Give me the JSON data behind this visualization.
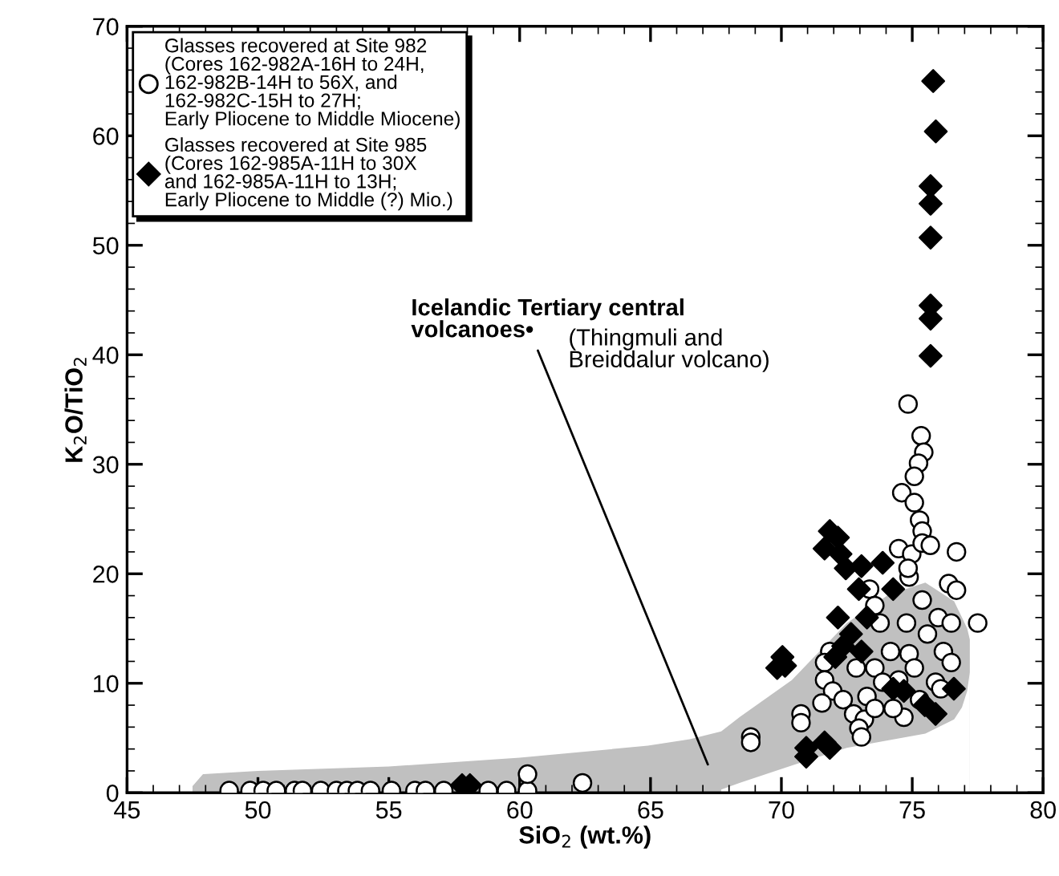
{
  "chart_data": {
    "type": "scatter",
    "xlabel": "SiO$_{2}$ (wt.%)",
    "ylabel": "K$_{2}$O/TiO$_{2}$",
    "xlim": [
      45,
      80
    ],
    "xticks": [
      45,
      50,
      55,
      60,
      65,
      70,
      75,
      80
    ],
    "ylim": [
      0,
      70
    ],
    "yticks": [
      0,
      10,
      20,
      30,
      40,
      50,
      60,
      70
    ],
    "grid": false,
    "legend": "top left",
    "series": [
      {
        "type": "area",
        "color": "#c0c0c0",
        "x": [
          47.5,
          47.9,
          50,
          55,
          60,
          64.9,
          66.5,
          67.7,
          68.4,
          70.4,
          72.5,
          74.1,
          75.5,
          76.6,
          76.9,
          77.1,
          77.2
        ],
        "values": [
          0.6,
          1.7,
          2.0,
          2.4,
          3.2,
          4.3,
          4.9,
          5.6,
          6.9,
          10.3,
          15.5,
          18.1,
          19.2,
          17.5,
          16.0,
          15.0,
          14.0
        ]
      },
      {
        "type": "area",
        "color": "#ffffff",
        "x": [
          67.7,
          68.4,
          70.4,
          72.5,
          74.1,
          75.5,
          76.6,
          76.9,
          77.1,
          77.2
        ],
        "values": [
          0.3,
          0.9,
          2.5,
          4.1,
          4.8,
          5.4,
          6.7,
          7.8,
          9.3,
          11.0
        ]
      },
      {
        "name": "Glasses recovered at Site 982\n(Cores 162-982A-16H to 24H,\n162-982B-14H to 56X, and\n162-982C-15H to 27H;\nEarly Pliocene to Middle Miocene)",
        "color": "#ffffff",
        "marker": "circle",
        "x": [
          48.9,
          49.7,
          50.2,
          50.7,
          51.4,
          51.7,
          52.4,
          53.0,
          53.4,
          53.8,
          54.3,
          55.1,
          56.0,
          56.4,
          57.1,
          58.8,
          59.5,
          60.3,
          60.3,
          62.4,
          74.84,
          75.34,
          75.44,
          75.24,
          75.08,
          74.6,
          75.08,
          75.28,
          75.38,
          74.48,
          74.98,
          76.69,
          75.38,
          75.69,
          74.88,
          76.39,
          76.69,
          73.37,
          73.57,
          75.38,
          74.78,
          75.99,
          76.49,
          77.5,
          75.58,
          73.77,
          71.85,
          71.65,
          74.17,
          74.88,
          76.19,
          76.49,
          72.86,
          73.57,
          74.48,
          75.08,
          75.89,
          71.65,
          71.96,
          72.36,
          73.27,
          71.55,
          72.76,
          73.17,
          70.75,
          70.75,
          72.96,
          73.06,
          74.68,
          74.27,
          73.57,
          68.83,
          68.83,
          75.28,
          76.09,
          73.87,
          74.84
        ],
        "values": [
          0.2,
          0.2,
          0.2,
          0.2,
          0.2,
          0.2,
          0.2,
          0.2,
          0.2,
          0.2,
          0.2,
          0.2,
          0.2,
          0.2,
          0.2,
          0.2,
          0.2,
          0.2,
          1.7,
          0.9,
          35.5,
          32.6,
          31.1,
          30.1,
          28.9,
          27.4,
          26.5,
          24.9,
          23.9,
          22.3,
          21.8,
          22.0,
          22.8,
          22.6,
          19.7,
          19.1,
          18.5,
          18.6,
          17.1,
          17.6,
          15.5,
          16.0,
          15.5,
          15.5,
          14.5,
          15.5,
          12.9,
          11.9,
          12.9,
          12.7,
          12.9,
          11.9,
          11.4,
          11.4,
          10.3,
          11.4,
          10.1,
          10.3,
          9.3,
          8.5,
          8.8,
          8.2,
          7.2,
          6.7,
          7.2,
          6.4,
          5.9,
          5.1,
          6.9,
          7.7,
          7.7,
          5.1,
          4.6,
          8.5,
          9.5,
          10.1,
          20.5
        ]
      },
      {
        "name": "Glasses recovered at Site 985\n(Cores 162-985A-11H to 30X\nand 162-985A-11H to 13H;\nEarly Pliocene to Middle (?) Mio.)",
        "color": "#000000",
        "marker": "diamond",
        "x": [
          57.8,
          58.1,
          75.8,
          75.9,
          75.7,
          75.7,
          75.7,
          75.7,
          75.7,
          75.7,
          71.85,
          72.16,
          71.65,
          72.26,
          73.06,
          72.46,
          73.87,
          72.96,
          74.27,
          72.16,
          72.66,
          72.36,
          73.06,
          70.04,
          69.84,
          70.14,
          72.06,
          73.27,
          74.68,
          75.48,
          75.89,
          76.59,
          70.95,
          70.95,
          71.65,
          71.85,
          74.27
        ],
        "values": [
          0.7,
          0.7,
          65.0,
          60.4,
          55.4,
          53.8,
          50.7,
          44.5,
          43.3,
          39.9,
          23.9,
          23.3,
          22.3,
          21.8,
          20.7,
          20.5,
          21.0,
          18.6,
          18.6,
          16.0,
          14.5,
          13.4,
          12.9,
          12.4,
          11.4,
          11.6,
          12.4,
          16.0,
          9.3,
          8.0,
          7.2,
          9.5,
          4.1,
          3.3,
          4.6,
          4.1,
          9.5
        ]
      }
    ],
    "annotations": [
      "Icelandic Tertiary central\nvolcanoes•",
      "(Thingmuli and\nBreiddalur volcano)"
    ]
  }
}
